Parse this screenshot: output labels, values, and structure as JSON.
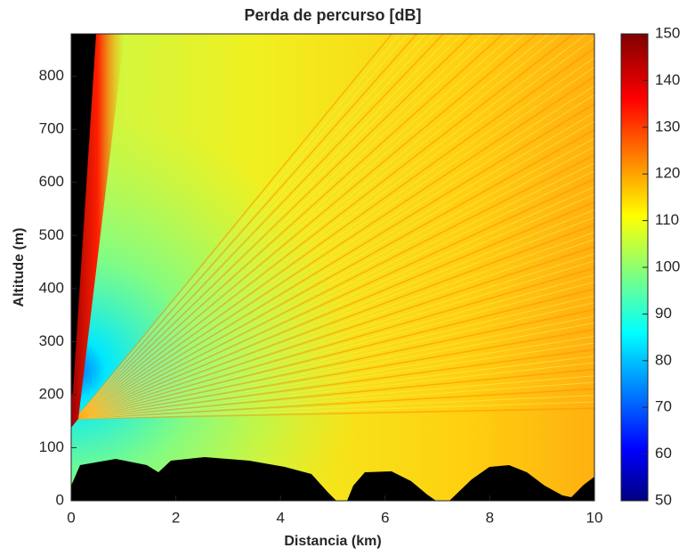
{
  "chart_data": {
    "type": "heatmap",
    "title": "Perda de percurso [dB]",
    "x_label": "Distancia (km)",
    "y_label": "Altitude (m)",
    "xlim": [
      0,
      10
    ],
    "xticks": [
      0,
      2,
      4,
      6,
      8,
      10
    ],
    "ylim": [
      0,
      880
    ],
    "yticks": [
      0,
      100,
      200,
      300,
      400,
      500,
      600,
      700,
      800
    ],
    "colormap": "jet",
    "clim": [
      50,
      150
    ],
    "cticks": [
      50,
      60,
      70,
      80,
      90,
      100,
      110,
      120,
      130,
      140,
      150
    ]
  }
}
